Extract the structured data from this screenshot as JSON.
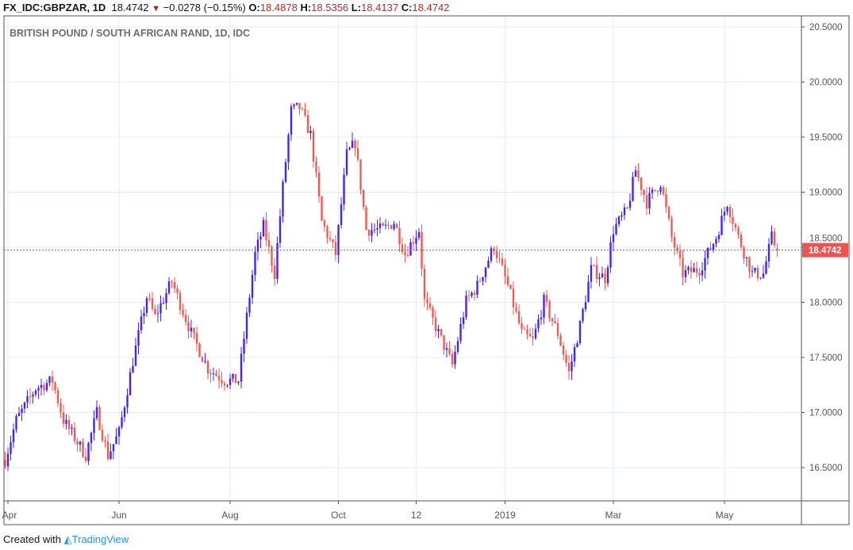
{
  "header": {
    "symbol": "FX_IDC:GBPZAR, 1D",
    "last": "18.4742",
    "change": "−0.0278 (−0.15%)",
    "o_label": "O:",
    "o": "18.4878",
    "h_label": "H:",
    "h": "18.5356",
    "l_label": "L:",
    "l": "18.4137",
    "c_label": "C:",
    "c": "18.4742"
  },
  "footer": {
    "created_with": "Created with",
    "brand": "TradingView"
  },
  "chart_data": {
    "type": "candlestick",
    "title": "BRITISH POUND / SOUTH AFRICAN RAND, 1D, IDC",
    "ylim": [
      16.2,
      20.6
    ],
    "y_ticks": [
      "20.5000",
      "20.0000",
      "19.5000",
      "19.0000",
      "18.5000",
      "18.0000",
      "17.5000",
      "17.0000",
      "16.5000"
    ],
    "x_ticks": [
      {
        "label": "Apr",
        "day": 1
      },
      {
        "label": "Jun",
        "day": 41
      },
      {
        "label": "Aug",
        "day": 81
      },
      {
        "label": "Oct",
        "day": 120
      },
      {
        "label": "12",
        "day": 148
      },
      {
        "label": "2019",
        "day": 180
      },
      {
        "label": "Mar",
        "day": 219
      },
      {
        "label": "May",
        "day": 259
      }
    ],
    "num_days": 279,
    "trend_day_price": [
      [
        0,
        16.57
      ],
      [
        4,
        16.93
      ],
      [
        11,
        17.22
      ],
      [
        17,
        17.29
      ],
      [
        21,
        16.93
      ],
      [
        29,
        16.61
      ],
      [
        33,
        17.0
      ],
      [
        37,
        16.61
      ],
      [
        41,
        16.82
      ],
      [
        46,
        17.47
      ],
      [
        51,
        18.05
      ],
      [
        54,
        17.87
      ],
      [
        60,
        18.19
      ],
      [
        67,
        17.72
      ],
      [
        73,
        17.4
      ],
      [
        79,
        17.29
      ],
      [
        84,
        17.29
      ],
      [
        87,
        17.87
      ],
      [
        90,
        18.44
      ],
      [
        93,
        18.69
      ],
      [
        97,
        18.26
      ],
      [
        100,
        19.05
      ],
      [
        103,
        19.74
      ],
      [
        106,
        19.77
      ],
      [
        110,
        19.52
      ],
      [
        114,
        18.73
      ],
      [
        119,
        18.44
      ],
      [
        123,
        19.34
      ],
      [
        126,
        19.45
      ],
      [
        130,
        18.66
      ],
      [
        136,
        18.66
      ],
      [
        140,
        18.73
      ],
      [
        144,
        18.44
      ],
      [
        149,
        18.66
      ],
      [
        151,
        18.01
      ],
      [
        156,
        17.72
      ],
      [
        161,
        17.43
      ],
      [
        166,
        18.01
      ],
      [
        170,
        18.15
      ],
      [
        176,
        18.51
      ],
      [
        181,
        18.15
      ],
      [
        186,
        17.72
      ],
      [
        190,
        17.65
      ],
      [
        194,
        18.01
      ],
      [
        199,
        17.72
      ],
      [
        203,
        17.36
      ],
      [
        207,
        17.79
      ],
      [
        211,
        18.3
      ],
      [
        216,
        18.22
      ],
      [
        219,
        18.66
      ],
      [
        224,
        18.84
      ],
      [
        227,
        19.2
      ],
      [
        231,
        18.91
      ],
      [
        236,
        19.09
      ],
      [
        240,
        18.59
      ],
      [
        244,
        18.26
      ],
      [
        250,
        18.3
      ],
      [
        256,
        18.59
      ],
      [
        260,
        18.91
      ],
      [
        264,
        18.59
      ],
      [
        269,
        18.26
      ],
      [
        273,
        18.26
      ],
      [
        276,
        18.59
      ],
      [
        278,
        18.4742
      ]
    ],
    "last_candle": {
      "open": 18.4878,
      "high": 18.5356,
      "low": 18.4137,
      "close": 18.4742
    },
    "current_price_label": "18.4742",
    "up_color": "#4325f2",
    "down_color": "#f05a4f"
  }
}
